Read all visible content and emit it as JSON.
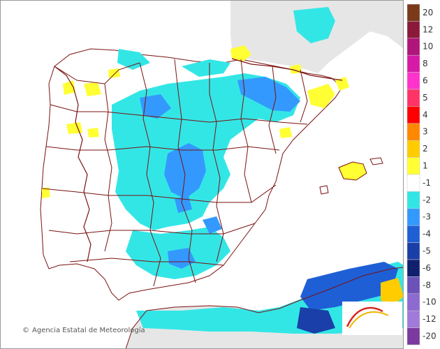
{
  "map": {
    "credit_text": "Agencia Estatal de Meteorología",
    "credit_symbol": "©",
    "logo": {
      "name": "AEMET",
      "sub": "Agencia Estatal de Meteorología"
    },
    "colors": {
      "sea": "#ffffff",
      "land": "#ffffff",
      "foreign_land": "#e6e6e6",
      "border": "#7a1010"
    }
  },
  "legend": {
    "items": [
      {
        "label": "20",
        "color": "#7a3a1a"
      },
      {
        "label": "12",
        "color": "#8b1a3a"
      },
      {
        "label": "10",
        "color": "#b0157a"
      },
      {
        "label": "8",
        "color": "#d61aa6"
      },
      {
        "label": "6",
        "color": "#ff33cc"
      },
      {
        "label": "5",
        "color": "#ff3366"
      },
      {
        "label": "4",
        "color": "#ff0000"
      },
      {
        "label": "3",
        "color": "#ff8800"
      },
      {
        "label": "2",
        "color": "#ffcc00"
      },
      {
        "label": "1",
        "color": "#ffff33"
      },
      {
        "label": "-1",
        "color": "#ffffff"
      },
      {
        "label": "-2",
        "color": "#33e6e6"
      },
      {
        "label": "-3",
        "color": "#3399ff"
      },
      {
        "label": "-4",
        "color": "#1f5fd6"
      },
      {
        "label": "-5",
        "color": "#1a3fa8"
      },
      {
        "label": "-6",
        "color": "#101f6e"
      },
      {
        "label": "-8",
        "color": "#6a52b8"
      },
      {
        "label": "-10",
        "color": "#8c6ad0"
      },
      {
        "label": "-12",
        "color": "#a07ad8"
      },
      {
        "label": "-20",
        "color": "#7a3aa0"
      }
    ]
  }
}
